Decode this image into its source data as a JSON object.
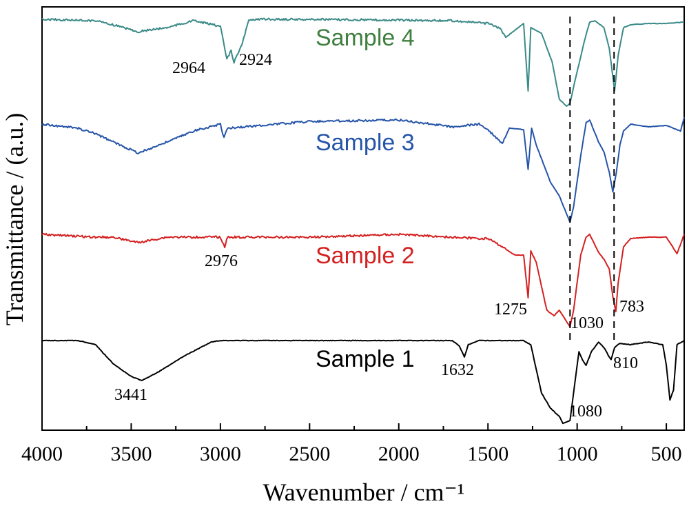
{
  "chart_data": {
    "type": "line",
    "title": "",
    "xlabel": "Wavenumber / cm⁻¹",
    "ylabel": "Transmittance / (a.u.)",
    "xlim": [
      4000,
      400
    ],
    "x_reversed": true,
    "x_ticks": [
      4000,
      3500,
      3000,
      2500,
      2000,
      1500,
      1000,
      500
    ],
    "y_ticks_shown": false,
    "grid": false,
    "legend": "none",
    "series": [
      {
        "name": "Sample 4",
        "color": "#3a8a88",
        "points": [
          [
            4000,
            18
          ],
          [
            3700,
            20
          ],
          [
            3600,
            26
          ],
          [
            3460,
            36
          ],
          [
            3300,
            30
          ],
          [
            3150,
            20
          ],
          [
            3000,
            28
          ],
          [
            2964,
            76
          ],
          [
            2940,
            64
          ],
          [
            2924,
            80
          ],
          [
            2880,
            56
          ],
          [
            2840,
            18
          ],
          [
            2500,
            18
          ],
          [
            1700,
            20
          ],
          [
            1500,
            24
          ],
          [
            1430,
            32
          ],
          [
            1400,
            44
          ],
          [
            1300,
            24
          ],
          [
            1275,
            122
          ],
          [
            1260,
            30
          ],
          [
            1200,
            38
          ],
          [
            1140,
            80
          ],
          [
            1100,
            134
          ],
          [
            1060,
            144
          ],
          [
            1040,
            140
          ],
          [
            1020,
            116
          ],
          [
            960,
            50
          ],
          [
            930,
            22
          ],
          [
            900,
            20
          ],
          [
            850,
            30
          ],
          [
            820,
            60
          ],
          [
            790,
            122
          ],
          [
            770,
            70
          ],
          [
            740,
            30
          ],
          [
            700,
            26
          ],
          [
            600,
            24
          ],
          [
            500,
            24
          ],
          [
            400,
            22
          ]
        ],
        "label_peaks": [
          2964,
          2924
        ]
      },
      {
        "name": "Sample 3",
        "color": "#2554a8",
        "points": [
          [
            4000,
            170
          ],
          [
            3800,
            176
          ],
          [
            3700,
            184
          ],
          [
            3600,
            196
          ],
          [
            3460,
            212
          ],
          [
            3300,
            196
          ],
          [
            3150,
            180
          ],
          [
            3000,
            170
          ],
          [
            2980,
            190
          ],
          [
            2960,
            176
          ],
          [
            2500,
            166
          ],
          [
            2000,
            164
          ],
          [
            1700,
            174
          ],
          [
            1550,
            170
          ],
          [
            1500,
            178
          ],
          [
            1420,
            198
          ],
          [
            1380,
            176
          ],
          [
            1300,
            178
          ],
          [
            1275,
            236
          ],
          [
            1255,
            176
          ],
          [
            1230,
            200
          ],
          [
            1150,
            254
          ],
          [
            1100,
            274
          ],
          [
            1060,
            300
          ],
          [
            1040,
            312
          ],
          [
            1020,
            290
          ],
          [
            980,
            216
          ],
          [
            950,
            168
          ],
          [
            930,
            164
          ],
          [
            880,
            196
          ],
          [
            850,
            210
          ],
          [
            820,
            240
          ],
          [
            800,
            268
          ],
          [
            780,
            240
          ],
          [
            760,
            200
          ],
          [
            740,
            180
          ],
          [
            700,
            170
          ],
          [
            600,
            174
          ],
          [
            500,
            172
          ],
          [
            420,
            180
          ],
          [
            400,
            160
          ]
        ],
        "label_peaks": []
      },
      {
        "name": "Sample 2",
        "color": "#d42020",
        "points": [
          [
            4000,
            330
          ],
          [
            3700,
            334
          ],
          [
            3600,
            334
          ],
          [
            3460,
            342
          ],
          [
            3300,
            334
          ],
          [
            3000,
            334
          ],
          [
            2976,
            348
          ],
          [
            2960,
            334
          ],
          [
            2500,
            334
          ],
          [
            2000,
            330
          ],
          [
            1700,
            334
          ],
          [
            1550,
            336
          ],
          [
            1500,
            336
          ],
          [
            1420,
            348
          ],
          [
            1350,
            360
          ],
          [
            1300,
            360
          ],
          [
            1275,
            422
          ],
          [
            1260,
            354
          ],
          [
            1230,
            370
          ],
          [
            1170,
            440
          ],
          [
            1130,
            448
          ],
          [
            1100,
            440
          ],
          [
            1060,
            456
          ],
          [
            1040,
            464
          ],
          [
            1020,
            440
          ],
          [
            980,
            360
          ],
          [
            950,
            334
          ],
          [
            930,
            330
          ],
          [
            880,
            356
          ],
          [
            850,
            366
          ],
          [
            820,
            380
          ],
          [
            800,
            420
          ],
          [
            783,
            442
          ],
          [
            770,
            400
          ],
          [
            740,
            348
          ],
          [
            700,
            336
          ],
          [
            600,
            334
          ],
          [
            500,
            334
          ],
          [
            440,
            358
          ],
          [
            400,
            330
          ]
        ],
        "label_peaks": [
          2976,
          1275,
          1030,
          783
        ]
      },
      {
        "name": "Sample 1",
        "color": "#000000",
        "points": [
          [
            4000,
            484
          ],
          [
            3800,
            484
          ],
          [
            3700,
            490
          ],
          [
            3600,
            518
          ],
          [
            3500,
            536
          ],
          [
            3441,
            542
          ],
          [
            3350,
            530
          ],
          [
            3200,
            506
          ],
          [
            3050,
            486
          ],
          [
            3000,
            484
          ],
          [
            2000,
            484
          ],
          [
            1700,
            484
          ],
          [
            1660,
            492
          ],
          [
            1632,
            508
          ],
          [
            1610,
            490
          ],
          [
            1550,
            484
          ],
          [
            1500,
            484
          ],
          [
            1420,
            484
          ],
          [
            1300,
            484
          ],
          [
            1260,
            490
          ],
          [
            1200,
            560
          ],
          [
            1150,
            582
          ],
          [
            1100,
            594
          ],
          [
            1080,
            604
          ],
          [
            1040,
            600
          ],
          [
            1020,
            560
          ],
          [
            990,
            500
          ],
          [
            970,
            512
          ],
          [
            950,
            520
          ],
          [
            920,
            500
          ],
          [
            880,
            486
          ],
          [
            850,
            494
          ],
          [
            820,
            508
          ],
          [
            810,
            512
          ],
          [
            790,
            494
          ],
          [
            760,
            488
          ],
          [
            700,
            490
          ],
          [
            600,
            486
          ],
          [
            520,
            490
          ],
          [
            500,
            520
          ],
          [
            480,
            570
          ],
          [
            460,
            556
          ],
          [
            440,
            490
          ],
          [
            400,
            484
          ]
        ],
        "label_peaks": [
          3441,
          1632,
          1080,
          810
        ]
      }
    ],
    "peak_labels": [
      "2964",
      "2924",
      "2976",
      "1275",
      "1030",
      "783",
      "3441",
      "1632",
      "1080",
      "810"
    ],
    "reference_lines": [
      1040,
      793
    ]
  }
}
